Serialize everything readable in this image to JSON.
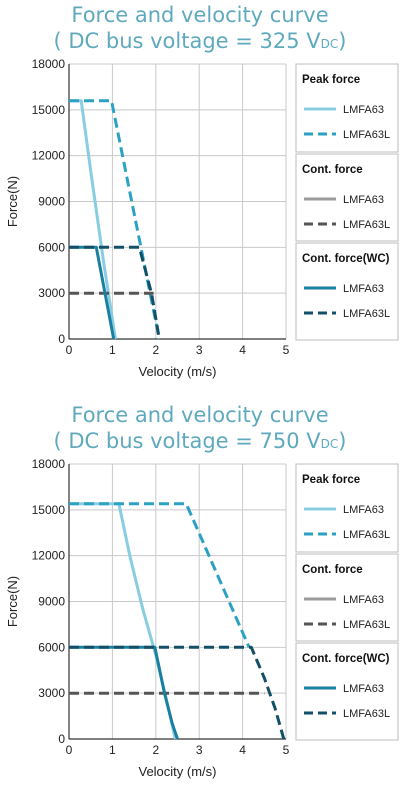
{
  "chart_data": [
    {
      "type": "line",
      "title_main": "Force and velocity curve",
      "title_sub_prefix": "( DC bus voltage = 325 V",
      "title_sub_unit": "DC",
      "title_sub_suffix": ")",
      "xlabel": "Velocity (m/s)",
      "ylabel": "Force(N)",
      "xlim": [
        0,
        5
      ],
      "ylim": [
        0,
        18000
      ],
      "xticks": [
        "0",
        "1",
        "2",
        "3",
        "4",
        "5"
      ],
      "yticks": [
        "0",
        "3000",
        "6000",
        "9000",
        "12000",
        "15000",
        "18000"
      ],
      "grid": true,
      "legend_position": "right",
      "legend_groups": [
        {
          "title": "Peak force",
          "items": [
            "LMFA63",
            "LMFA63L"
          ]
        },
        {
          "title": "Cont. force",
          "items": [
            "LMFA63",
            "LMFA63L"
          ]
        },
        {
          "title": "Cont. force(WC)",
          "items": [
            "LMFA63",
            "LMFA63L"
          ]
        }
      ],
      "series": [
        {
          "name": "LMFA63",
          "group": "Peak force",
          "color": "#88cde0",
          "dash": false,
          "x": [
            0.0,
            0.28,
            0.5,
            0.8,
            1.07
          ],
          "y": [
            15600,
            15600,
            11000,
            5000,
            0
          ]
        },
        {
          "name": "LMFA63L",
          "group": "Peak force",
          "color": "#2ba1c4",
          "dash": true,
          "x": [
            0.0,
            0.98,
            2.08
          ],
          "y": [
            15600,
            15600,
            0
          ]
        },
        {
          "name": "LMFA63",
          "group": "Cont. force",
          "color": "#9b9b9b",
          "dash": false,
          "x": [],
          "y": []
        },
        {
          "name": "LMFA63L",
          "group": "Cont. force",
          "color": "#555555",
          "dash": true,
          "x": [
            0.0,
            1.95
          ],
          "y": [
            3000,
            3000
          ]
        },
        {
          "name": "LMFA63",
          "group": "Cont. force(WC)",
          "color": "#1a7fa1",
          "dash": false,
          "x": [
            0.0,
            0.63,
            0.83,
            1.03
          ],
          "y": [
            6000,
            6000,
            3000,
            0
          ]
        },
        {
          "name": "LMFA63L",
          "group": "Cont. force(WC)",
          "color": "#134f66",
          "dash": true,
          "x": [
            0.0,
            1.62,
            1.9,
            2.08
          ],
          "y": [
            6000,
            6000,
            3000,
            0
          ]
        }
      ]
    },
    {
      "type": "line",
      "title_main": "Force and velocity curve",
      "title_sub_prefix": "( DC bus voltage = 750 V",
      "title_sub_unit": "DC",
      "title_sub_suffix": ")",
      "xlabel": "Velocity (m/s)",
      "ylabel": "Force(N)",
      "xlim": [
        0,
        5
      ],
      "ylim": [
        0,
        18000
      ],
      "xticks": [
        "0",
        "1",
        "2",
        "3",
        "4",
        "5"
      ],
      "yticks": [
        "0",
        "3000",
        "6000",
        "9000",
        "12000",
        "15000",
        "18000"
      ],
      "grid": true,
      "legend_position": "right",
      "legend_groups": [
        {
          "title": "Peak force",
          "items": [
            "LMFA63",
            "LMFA63L"
          ]
        },
        {
          "title": "Cont. force",
          "items": [
            "LMFA63",
            "LMFA63L"
          ]
        },
        {
          "title": "Cont. force(WC)",
          "items": [
            "LMFA63",
            "LMFA63L"
          ]
        }
      ],
      "series": [
        {
          "name": "LMFA63",
          "group": "Peak force",
          "color": "#88cde0",
          "dash": false,
          "x": [
            0.0,
            1.15,
            1.4,
            1.7,
            2.0,
            2.25,
            2.45
          ],
          "y": [
            15400,
            15400,
            12000,
            8500,
            5500,
            2500,
            0
          ]
        },
        {
          "name": "LMFA63L",
          "group": "Peak force",
          "color": "#2ba1c4",
          "dash": true,
          "x": [
            0.0,
            2.7,
            4.15
          ],
          "y": [
            15400,
            15400,
            6000
          ]
        },
        {
          "name": "LMFA63",
          "group": "Cont. force",
          "color": "#9b9b9b",
          "dash": false,
          "x": [],
          "y": []
        },
        {
          "name": "LMFA63L",
          "group": "Cont. force",
          "color": "#555555",
          "dash": true,
          "x": [
            0.0,
            4.5
          ],
          "y": [
            3000,
            3000
          ]
        },
        {
          "name": "LMFA63",
          "group": "Cont. force(WC)",
          "color": "#1a7fa1",
          "dash": false,
          "x": [
            0.0,
            1.98,
            2.2,
            2.38,
            2.5
          ],
          "y": [
            6000,
            6000,
            3000,
            1000,
            0
          ]
        },
        {
          "name": "LMFA63L",
          "group": "Cont. force(WC)",
          "color": "#134f66",
          "dash": true,
          "x": [
            0.0,
            4.2,
            4.5,
            4.75,
            4.95
          ],
          "y": [
            6000,
            6000,
            4000,
            2000,
            0
          ]
        }
      ]
    }
  ]
}
